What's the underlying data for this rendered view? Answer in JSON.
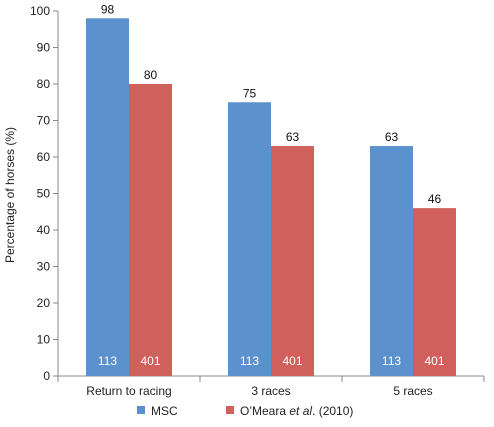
{
  "chart_data": {
    "type": "bar",
    "ylabel": "Percentage of horses (%)",
    "xlabel": "",
    "ylim": [
      0,
      100
    ],
    "yticks": [
      0,
      10,
      20,
      30,
      40,
      50,
      60,
      70,
      80,
      90,
      100
    ],
    "grid": false,
    "legend_position": "bottom",
    "categories": [
      "Return to racing",
      "3 races",
      "5 races"
    ],
    "series": [
      {
        "name": "MSC",
        "color": "#5b91cc",
        "values": [
          98,
          75,
          63
        ],
        "sample_sizes": [
          "113",
          "113",
          "113"
        ]
      },
      {
        "name_parts": [
          "O’Meara ",
          "et al",
          ". (2010)"
        ],
        "color": "#d0605b",
        "values": [
          80,
          63,
          46
        ],
        "sample_sizes": [
          "401",
          "401",
          "401"
        ]
      }
    ]
  }
}
